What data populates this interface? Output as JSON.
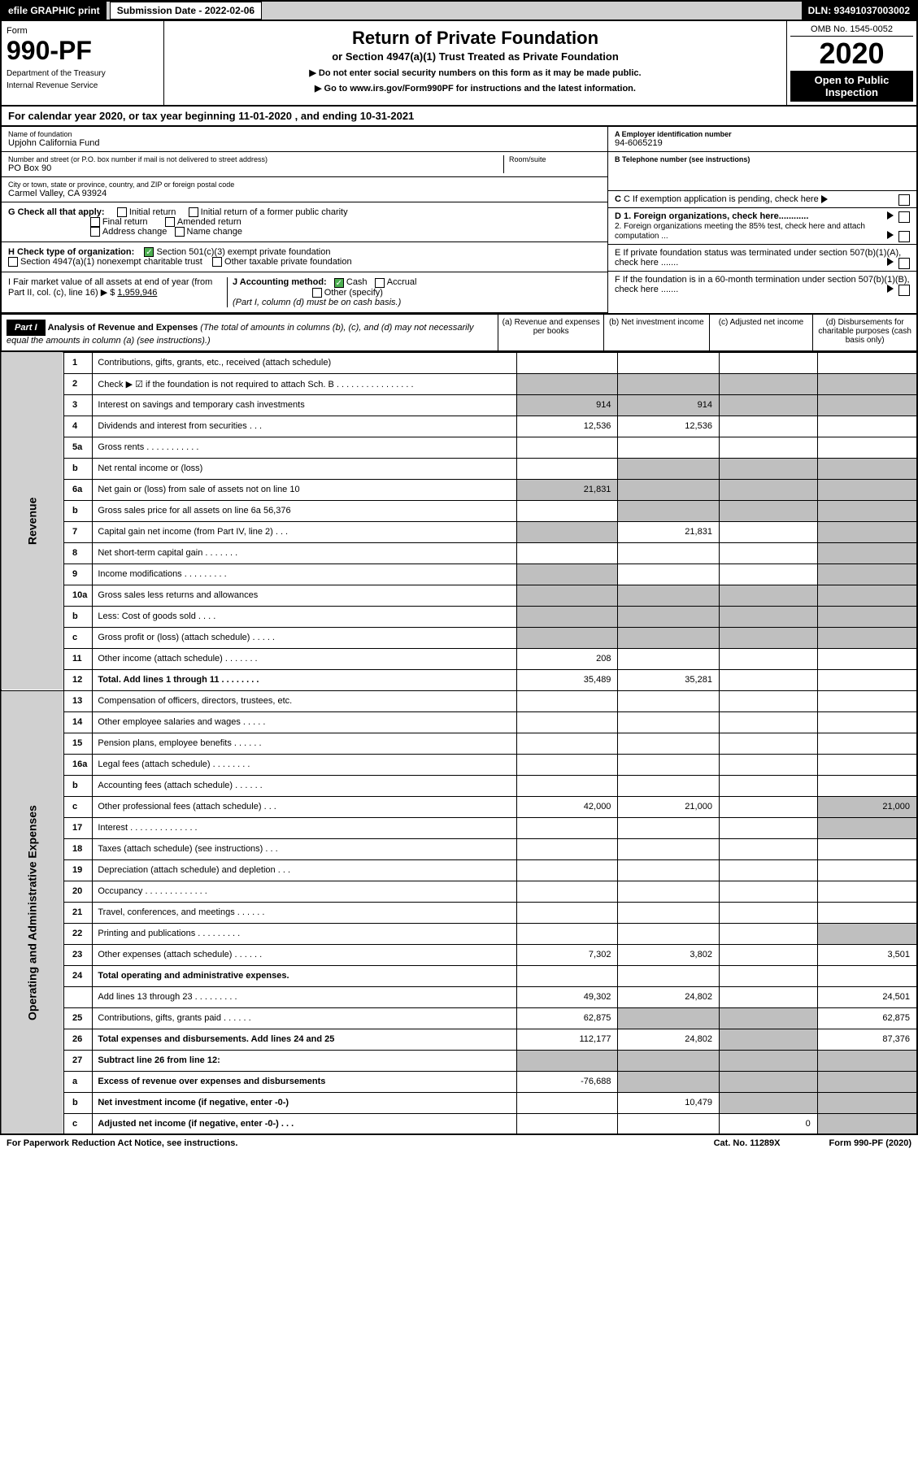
{
  "topbar": {
    "efile": "efile GRAPHIC print",
    "subdate_label": "Submission Date - 2022-02-06",
    "dln": "DLN: 93491037003002"
  },
  "header": {
    "form": "Form",
    "formno": "990-PF",
    "dept": "Department of the Treasury",
    "irs": "Internal Revenue Service",
    "title": "Return of Private Foundation",
    "subtitle": "or Section 4947(a)(1) Trust Treated as Private Foundation",
    "note1": "▶ Do not enter social security numbers on this form as it may be made public.",
    "note2": "▶ Go to www.irs.gov/Form990PF for instructions and the latest information.",
    "omb": "OMB No. 1545-0052",
    "year": "2020",
    "open": "Open to Public Inspection"
  },
  "calyear": "For calendar year 2020, or tax year beginning 11-01-2020                                , and ending 10-31-2021",
  "info": {
    "name_lbl": "Name of foundation",
    "name": "Upjohn California Fund",
    "addr_lbl": "Number and street (or P.O. box number if mail is not delivered to street address)",
    "addr": "PO Box 90",
    "room_lbl": "Room/suite",
    "city_lbl": "City or town, state or province, country, and ZIP or foreign postal code",
    "city": "Carmel Valley, CA  93924",
    "a_lbl": "A Employer identification number",
    "a": "94-6065219",
    "b_lbl": "B Telephone number (see instructions)",
    "c": "C If exemption application is pending, check here",
    "d1": "D 1. Foreign organizations, check here............",
    "d2": "2. Foreign organizations meeting the 85% test, check here and attach computation ...",
    "e": "E  If private foundation status was terminated under section 507(b)(1)(A), check here .......",
    "f": "F  If the foundation is in a 60-month termination under section 507(b)(1)(B), check here .......",
    "g": "G Check all that apply:",
    "g1": "Initial return",
    "g2": "Initial return of a former public charity",
    "g3": "Final return",
    "g4": "Amended return",
    "g5": "Address change",
    "g6": "Name change",
    "h": "H Check type of organization:",
    "h1": "Section 501(c)(3) exempt private foundation",
    "h2": "Section 4947(a)(1) nonexempt charitable trust",
    "h3": "Other taxable private foundation",
    "i": "I Fair market value of all assets at end of year (from Part II, col. (c), line 16) ▶ $",
    "i_val": "1,959,946",
    "j": "J Accounting method:",
    "j1": "Cash",
    "j2": "Accrual",
    "j3": "Other (specify)",
    "j_note": "(Part I, column (d) must be on cash basis.)"
  },
  "part1": {
    "label": "Part I",
    "title": "Analysis of Revenue and Expenses",
    "sub": "(The total of amounts in columns (b), (c), and (d) may not necessarily equal the amounts in column (a) (see instructions).)",
    "cola": "(a)    Revenue and expenses per books",
    "colb": "(b)    Net investment income",
    "colc": "(c)   Adjusted net income",
    "cold": "(d)   Disbursements for charitable purposes (cash basis only)"
  },
  "sidebar": {
    "rev": "Revenue",
    "oae": "Operating and Administrative Expenses"
  },
  "rows": [
    {
      "n": "1",
      "d": "Contributions, gifts, grants, etc., received (attach schedule)"
    },
    {
      "n": "2",
      "d": "Check ▶ ☑ if the foundation is not required to attach Sch. B   .   .   .   .   .   .   .   .   .   .   .   .   .   .   .   ."
    },
    {
      "n": "3",
      "d": "Interest on savings and temporary cash investments",
      "a": "914",
      "b": "914"
    },
    {
      "n": "4",
      "d": "Dividends and interest from securities   .   .   .",
      "a": "12,536",
      "b": "12,536"
    },
    {
      "n": "5a",
      "d": "Gross rents   .   .   .   .   .   .   .   .   .   .   ."
    },
    {
      "n": "b",
      "d": "Net rental income or (loss)"
    },
    {
      "n": "6a",
      "d": "Net gain or (loss) from sale of assets not on line 10",
      "a": "21,831"
    },
    {
      "n": "b",
      "d": "Gross sales price for all assets on line 6a                     56,376"
    },
    {
      "n": "7",
      "d": "Capital gain net income (from Part IV, line 2)   .   .   .",
      "b": "21,831"
    },
    {
      "n": "8",
      "d": "Net short-term capital gain   .   .   .   .   .   .   ."
    },
    {
      "n": "9",
      "d": "Income modifications   .   .   .   .   .   .   .   .   ."
    },
    {
      "n": "10a",
      "d": "Gross sales less returns and allowances"
    },
    {
      "n": "b",
      "d": "Less: Cost of goods sold   .   .   .   ."
    },
    {
      "n": "c",
      "d": "Gross profit or (loss) (attach schedule)   .   .   .   .   ."
    },
    {
      "n": "11",
      "d": "Other income (attach schedule)   .   .   .   .   .   .   .",
      "a": "208"
    },
    {
      "n": "12",
      "d": "Total. Add lines 1 through 11   .   .   .   .   .   .   .   .",
      "bold": true,
      "a": "35,489",
      "b": "35,281"
    },
    {
      "n": "13",
      "d": "Compensation of officers, directors, trustees, etc."
    },
    {
      "n": "14",
      "d": "Other employee salaries and wages   .   .   .   .   ."
    },
    {
      "n": "15",
      "d": "Pension plans, employee benefits   .   .   .   .   .   ."
    },
    {
      "n": "16a",
      "d": "Legal fees (attach schedule)   .   .   .   .   .   .   .   ."
    },
    {
      "n": "b",
      "d": "Accounting fees (attach schedule)   .   .   .   .   .   ."
    },
    {
      "n": "c",
      "d": "Other professional fees (attach schedule)   .   .   .",
      "a": "42,000",
      "b": "21,000",
      "dd": "21,000"
    },
    {
      "n": "17",
      "d": "Interest   .   .   .   .   .   .   .   .   .   .   .   .   .   ."
    },
    {
      "n": "18",
      "d": "Taxes (attach schedule) (see instructions)   .   .   ."
    },
    {
      "n": "19",
      "d": "Depreciation (attach schedule) and depletion   .   .   ."
    },
    {
      "n": "20",
      "d": "Occupancy   .   .   .   .   .   .   .   .   .   .   .   .   ."
    },
    {
      "n": "21",
      "d": "Travel, conferences, and meetings   .   .   .   .   .   ."
    },
    {
      "n": "22",
      "d": "Printing and publications   .   .   .   .   .   .   .   .   ."
    },
    {
      "n": "23",
      "d": "Other expenses (attach schedule)   .   .   .   .   .   .",
      "a": "7,302",
      "b": "3,802",
      "dd": "3,501"
    },
    {
      "n": "24",
      "d": "Total operating and administrative expenses.",
      "bold": true
    },
    {
      "n": "",
      "d": "Add lines 13 through 23    .   .   .   .   .   .   .   .   .",
      "a": "49,302",
      "b": "24,802",
      "dd": "24,501"
    },
    {
      "n": "25",
      "d": "Contributions, gifts, grants paid   .   .   .   .   .   .",
      "a": "62,875",
      "dd": "62,875"
    },
    {
      "n": "26",
      "d": "Total expenses and disbursements. Add lines 24 and 25",
      "bold": true,
      "a": "112,177",
      "b": "24,802",
      "dd": "87,376"
    },
    {
      "n": "27",
      "d": "Subtract line 26 from line 12:",
      "bold": true
    },
    {
      "n": "a",
      "d": "Excess of revenue over expenses and disbursements",
      "bold": true,
      "a": "-76,688"
    },
    {
      "n": "b",
      "d": "Net investment income (if negative, enter -0-)",
      "bold": true,
      "b": "10,479"
    },
    {
      "n": "c",
      "d": "Adjusted net income (if negative, enter -0-)   .   .   .",
      "bold": true,
      "c": "0"
    }
  ],
  "grey_cells": {
    "1": [
      "a",
      "b",
      "c",
      "d"
    ],
    "2": [
      "a",
      "b",
      "c",
      "d"
    ],
    "5": [
      "b",
      "c",
      "d"
    ],
    "6": [
      "a",
      "b",
      "c",
      "d"
    ],
    "7": [
      "b",
      "c",
      "d"
    ],
    "8": [
      "a",
      "d"
    ],
    "9": [
      "d"
    ],
    "10": [
      "a",
      "d"
    ],
    "11": [
      "a",
      "b",
      "c",
      "d"
    ],
    "12": [
      "a",
      "b",
      "c",
      "d"
    ],
    "13": [
      "a",
      "b",
      "c",
      "d"
    ],
    "21": [
      "d"
    ],
    "22": [
      "d"
    ],
    "27": [
      "d"
    ],
    "31": [
      "b",
      "c"
    ],
    "32": [
      "c"
    ],
    "33": [
      "a",
      "b",
      "c",
      "d"
    ],
    "34": [
      "b",
      "c",
      "d"
    ],
    "35": [
      "c",
      "d"
    ],
    "36": [
      "d"
    ]
  },
  "footer": {
    "left": "For Paperwork Reduction Act Notice, see instructions.",
    "mid": "Cat. No. 11289X",
    "right": "Form 990-PF (2020)"
  }
}
